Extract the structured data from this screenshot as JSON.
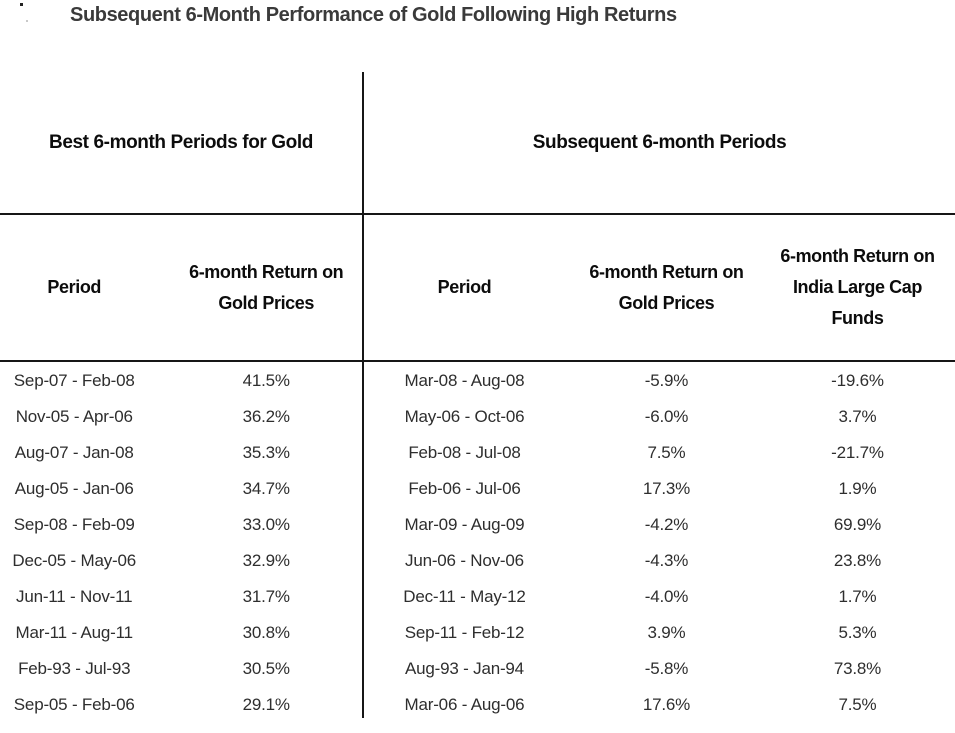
{
  "title": "Subsequent 6-Month Performance of Gold Following High Returns",
  "chart_data": {
    "type": "table",
    "title": "Subsequent 6-Month Performance of Gold Following High Returns",
    "sections": [
      {
        "header": "Best 6-month Periods for Gold",
        "columns": [
          "Period",
          "6-month Return on Gold Prices"
        ],
        "rows": [
          [
            "Sep-07 - Feb-08",
            "41.5%"
          ],
          [
            "Nov-05 - Apr-06",
            "36.2%"
          ],
          [
            "Aug-07 - Jan-08",
            "35.3%"
          ],
          [
            "Aug-05 - Jan-06",
            "34.7%"
          ],
          [
            "Sep-08 - Feb-09",
            "33.0%"
          ],
          [
            "Dec-05 - May-06",
            "32.9%"
          ],
          [
            "Jun-11 - Nov-11",
            "31.7%"
          ],
          [
            "Mar-11 - Aug-11",
            "30.8%"
          ],
          [
            "Feb-93 - Jul-93",
            "30.5%"
          ],
          [
            "Sep-05 - Feb-06",
            "29.1%"
          ]
        ]
      },
      {
        "header": "Subsequent 6-month Periods",
        "columns": [
          "Period",
          "6-month Return on Gold Prices",
          "6-month Return on India Large Cap Funds"
        ],
        "rows": [
          [
            "Mar-08 - Aug-08",
            "-5.9%",
            "-19.6%"
          ],
          [
            "May-06 - Oct-06",
            "-6.0%",
            "3.7%"
          ],
          [
            "Feb-08 - Jul-08",
            "7.5%",
            "-21.7%"
          ],
          [
            "Feb-06 - Jul-06",
            "17.3%",
            "1.9%"
          ],
          [
            "Mar-09 - Aug-09",
            "-4.2%",
            "69.9%"
          ],
          [
            "Jun-06 - Nov-06",
            "-4.3%",
            "23.8%"
          ],
          [
            "Dec-11 - May-12",
            "-4.0%",
            "1.7%"
          ],
          [
            "Sep-11 - Feb-12",
            "3.9%",
            "5.3%"
          ],
          [
            "Aug-93 - Jan-94",
            "-5.8%",
            "73.8%"
          ],
          [
            "Mar-06 - Aug-06",
            "17.6%",
            "7.5%"
          ]
        ]
      }
    ],
    "layout": {
      "grid": "off",
      "section_divider": "vertical-line",
      "header_rules": "horizontal-lines"
    }
  },
  "colors": {
    "background": "#ffffff",
    "title_text": "#3a3a3a",
    "header_text": "#0c0c0c",
    "data_text": "#2e2e2e",
    "rule_line": "#161616"
  }
}
